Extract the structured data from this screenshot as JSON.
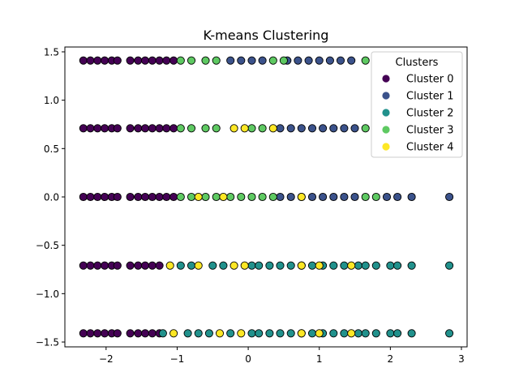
{
  "chart_data": {
    "type": "scatter",
    "title": "K-means Clustering",
    "xlabel": "",
    "ylabel": "",
    "xlim": [
      -2.58,
      3.08
    ],
    "ylim": [
      -1.55,
      1.55
    ],
    "xticks": [
      -2,
      -1,
      0,
      1,
      2,
      3
    ],
    "yticks": [
      -1.5,
      -1.0,
      -0.5,
      0.0,
      0.5,
      1.0,
      1.5
    ],
    "xtick_labels": [
      "−2",
      "−1",
      "0",
      "1",
      "2",
      "3"
    ],
    "ytick_labels": [
      "−1.5",
      "−1.0",
      "−0.5",
      "0.0",
      "0.5",
      "1.0",
      "1.5"
    ],
    "grid": false,
    "legend": {
      "title": "Clusters",
      "placement": "top-right",
      "entries": [
        "Cluster 0",
        "Cluster 1",
        "Cluster 2",
        "Cluster 3",
        "Cluster 4"
      ]
    },
    "colors": [
      "#440154",
      "#3b528b",
      "#21918c",
      "#5ec962",
      "#fde725"
    ],
    "marker_edge": "#000000",
    "y_levels": [
      1.41,
      0.71,
      0.0,
      -0.71,
      -1.41
    ],
    "series": [
      {
        "name": "Cluster 0",
        "points": [
          [
            -2.32,
            1.41
          ],
          [
            -2.22,
            1.41
          ],
          [
            -2.12,
            1.41
          ],
          [
            -2.02,
            1.41
          ],
          [
            -1.92,
            1.41
          ],
          [
            -1.84,
            1.41
          ],
          [
            -1.66,
            1.41
          ],
          [
            -1.55,
            1.41
          ],
          [
            -1.45,
            1.41
          ],
          [
            -1.35,
            1.41
          ],
          [
            -1.25,
            1.41
          ],
          [
            -1.15,
            1.41
          ],
          [
            -1.05,
            1.41
          ],
          [
            -2.32,
            0.71
          ],
          [
            -2.22,
            0.71
          ],
          [
            -2.12,
            0.71
          ],
          [
            -2.02,
            0.71
          ],
          [
            -1.92,
            0.71
          ],
          [
            -1.84,
            0.71
          ],
          [
            -1.66,
            0.71
          ],
          [
            -1.55,
            0.71
          ],
          [
            -1.45,
            0.71
          ],
          [
            -1.35,
            0.71
          ],
          [
            -1.25,
            0.71
          ],
          [
            -1.15,
            0.71
          ],
          [
            -1.05,
            0.71
          ],
          [
            -2.32,
            0.0
          ],
          [
            -2.22,
            0.0
          ],
          [
            -2.12,
            0.0
          ],
          [
            -2.02,
            0.0
          ],
          [
            -1.92,
            0.0
          ],
          [
            -1.84,
            0.0
          ],
          [
            -1.66,
            0.0
          ],
          [
            -1.55,
            0.0
          ],
          [
            -1.45,
            0.0
          ],
          [
            -1.35,
            0.0
          ],
          [
            -1.25,
            0.0
          ],
          [
            -1.15,
            0.0
          ],
          [
            -1.05,
            0.0
          ],
          [
            -2.32,
            -0.71
          ],
          [
            -2.22,
            -0.71
          ],
          [
            -2.12,
            -0.71
          ],
          [
            -2.02,
            -0.71
          ],
          [
            -1.92,
            -0.71
          ],
          [
            -1.84,
            -0.71
          ],
          [
            -1.66,
            -0.71
          ],
          [
            -1.55,
            -0.71
          ],
          [
            -1.45,
            -0.71
          ],
          [
            -1.35,
            -0.71
          ],
          [
            -1.25,
            -0.71
          ],
          [
            -2.32,
            -1.41
          ],
          [
            -2.22,
            -1.41
          ],
          [
            -2.12,
            -1.41
          ],
          [
            -2.02,
            -1.41
          ],
          [
            -1.92,
            -1.41
          ],
          [
            -1.84,
            -1.41
          ],
          [
            -1.66,
            -1.41
          ],
          [
            -1.55,
            -1.41
          ],
          [
            -1.45,
            -1.41
          ],
          [
            -1.35,
            -1.41
          ],
          [
            -1.25,
            -1.41
          ]
        ]
      },
      {
        "name": "Cluster 1",
        "points": [
          [
            -0.25,
            1.41
          ],
          [
            -0.1,
            1.41
          ],
          [
            0.05,
            1.41
          ],
          [
            0.2,
            1.41
          ],
          [
            0.55,
            1.41
          ],
          [
            0.7,
            1.41
          ],
          [
            0.85,
            1.41
          ],
          [
            1.0,
            1.41
          ],
          [
            1.15,
            1.41
          ],
          [
            1.3,
            1.41
          ],
          [
            1.45,
            1.41
          ],
          [
            0.45,
            0.71
          ],
          [
            0.6,
            0.71
          ],
          [
            0.75,
            0.71
          ],
          [
            0.9,
            0.71
          ],
          [
            1.05,
            0.71
          ],
          [
            1.2,
            0.71
          ],
          [
            1.35,
            0.71
          ],
          [
            1.5,
            0.71
          ],
          [
            0.45,
            0.0
          ],
          [
            0.6,
            0.0
          ],
          [
            0.75,
            0.0
          ],
          [
            0.9,
            0.0
          ],
          [
            1.05,
            0.0
          ],
          [
            1.2,
            0.0
          ],
          [
            1.35,
            0.0
          ],
          [
            1.5,
            0.0
          ],
          [
            1.95,
            0.0
          ],
          [
            2.1,
            0.0
          ],
          [
            2.3,
            0.0
          ],
          [
            2.83,
            0.0
          ]
        ]
      },
      {
        "name": "Cluster 2",
        "points": [
          [
            -0.95,
            -0.71
          ],
          [
            -0.8,
            -0.71
          ],
          [
            -0.5,
            -0.71
          ],
          [
            -0.35,
            -0.71
          ],
          [
            0.05,
            -0.71
          ],
          [
            0.15,
            -0.71
          ],
          [
            0.3,
            -0.71
          ],
          [
            0.45,
            -0.71
          ],
          [
            0.6,
            -0.71
          ],
          [
            0.75,
            -0.71
          ],
          [
            0.9,
            -0.71
          ],
          [
            1.05,
            -0.71
          ],
          [
            1.2,
            -0.71
          ],
          [
            1.35,
            -0.71
          ],
          [
            1.55,
            -0.71
          ],
          [
            1.65,
            -0.71
          ],
          [
            1.8,
            -0.71
          ],
          [
            2.0,
            -0.71
          ],
          [
            2.1,
            -0.71
          ],
          [
            2.3,
            -0.71
          ],
          [
            2.83,
            -0.71
          ],
          [
            -1.2,
            -1.41
          ],
          [
            -0.85,
            -1.41
          ],
          [
            -0.7,
            -1.41
          ],
          [
            -0.55,
            -1.41
          ],
          [
            -0.25,
            -1.41
          ],
          [
            0.05,
            -1.41
          ],
          [
            0.15,
            -1.41
          ],
          [
            0.3,
            -1.41
          ],
          [
            0.45,
            -1.41
          ],
          [
            0.6,
            -1.41
          ],
          [
            0.75,
            -1.41
          ],
          [
            0.9,
            -1.41
          ],
          [
            1.05,
            -1.41
          ],
          [
            1.2,
            -1.41
          ],
          [
            1.35,
            -1.41
          ],
          [
            1.55,
            -1.41
          ],
          [
            1.65,
            -1.41
          ],
          [
            1.8,
            -1.41
          ],
          [
            2.0,
            -1.41
          ],
          [
            2.1,
            -1.41
          ],
          [
            2.3,
            -1.41
          ],
          [
            2.83,
            -1.41
          ]
        ]
      },
      {
        "name": "Cluster 3",
        "points": [
          [
            -0.95,
            1.41
          ],
          [
            -0.8,
            1.41
          ],
          [
            -0.6,
            1.41
          ],
          [
            -0.45,
            1.41
          ],
          [
            0.35,
            1.41
          ],
          [
            0.5,
            1.41
          ],
          [
            1.65,
            1.41
          ],
          [
            -0.95,
            0.71
          ],
          [
            -0.8,
            0.71
          ],
          [
            -0.6,
            0.71
          ],
          [
            -0.45,
            0.71
          ],
          [
            0.05,
            0.71
          ],
          [
            0.2,
            0.71
          ],
          [
            1.65,
            0.71
          ],
          [
            -0.95,
            0.0
          ],
          [
            -0.8,
            0.0
          ],
          [
            -0.6,
            0.0
          ],
          [
            -0.45,
            0.0
          ],
          [
            -0.25,
            0.0
          ],
          [
            -0.1,
            0.0
          ],
          [
            0.05,
            0.0
          ],
          [
            0.2,
            0.0
          ],
          [
            0.35,
            0.0
          ],
          [
            1.65,
            0.0
          ],
          [
            1.8,
            0.0
          ]
        ]
      },
      {
        "name": "Cluster 4",
        "points": [
          [
            -0.2,
            0.71
          ],
          [
            -0.05,
            0.71
          ],
          [
            0.35,
            0.71
          ],
          [
            -0.7,
            0.0
          ],
          [
            -0.35,
            0.0
          ],
          [
            0.75,
            0.0
          ],
          [
            -1.1,
            -0.71
          ],
          [
            -0.7,
            -0.71
          ],
          [
            -0.2,
            -0.71
          ],
          [
            -0.05,
            -0.71
          ],
          [
            0.75,
            -0.71
          ],
          [
            1.0,
            -0.71
          ],
          [
            1.45,
            -0.71
          ],
          [
            -1.05,
            -1.41
          ],
          [
            -0.4,
            -1.41
          ],
          [
            -0.1,
            -1.41
          ],
          [
            0.75,
            -1.41
          ],
          [
            1.0,
            -1.41
          ],
          [
            1.45,
            -1.41
          ]
        ]
      }
    ]
  }
}
